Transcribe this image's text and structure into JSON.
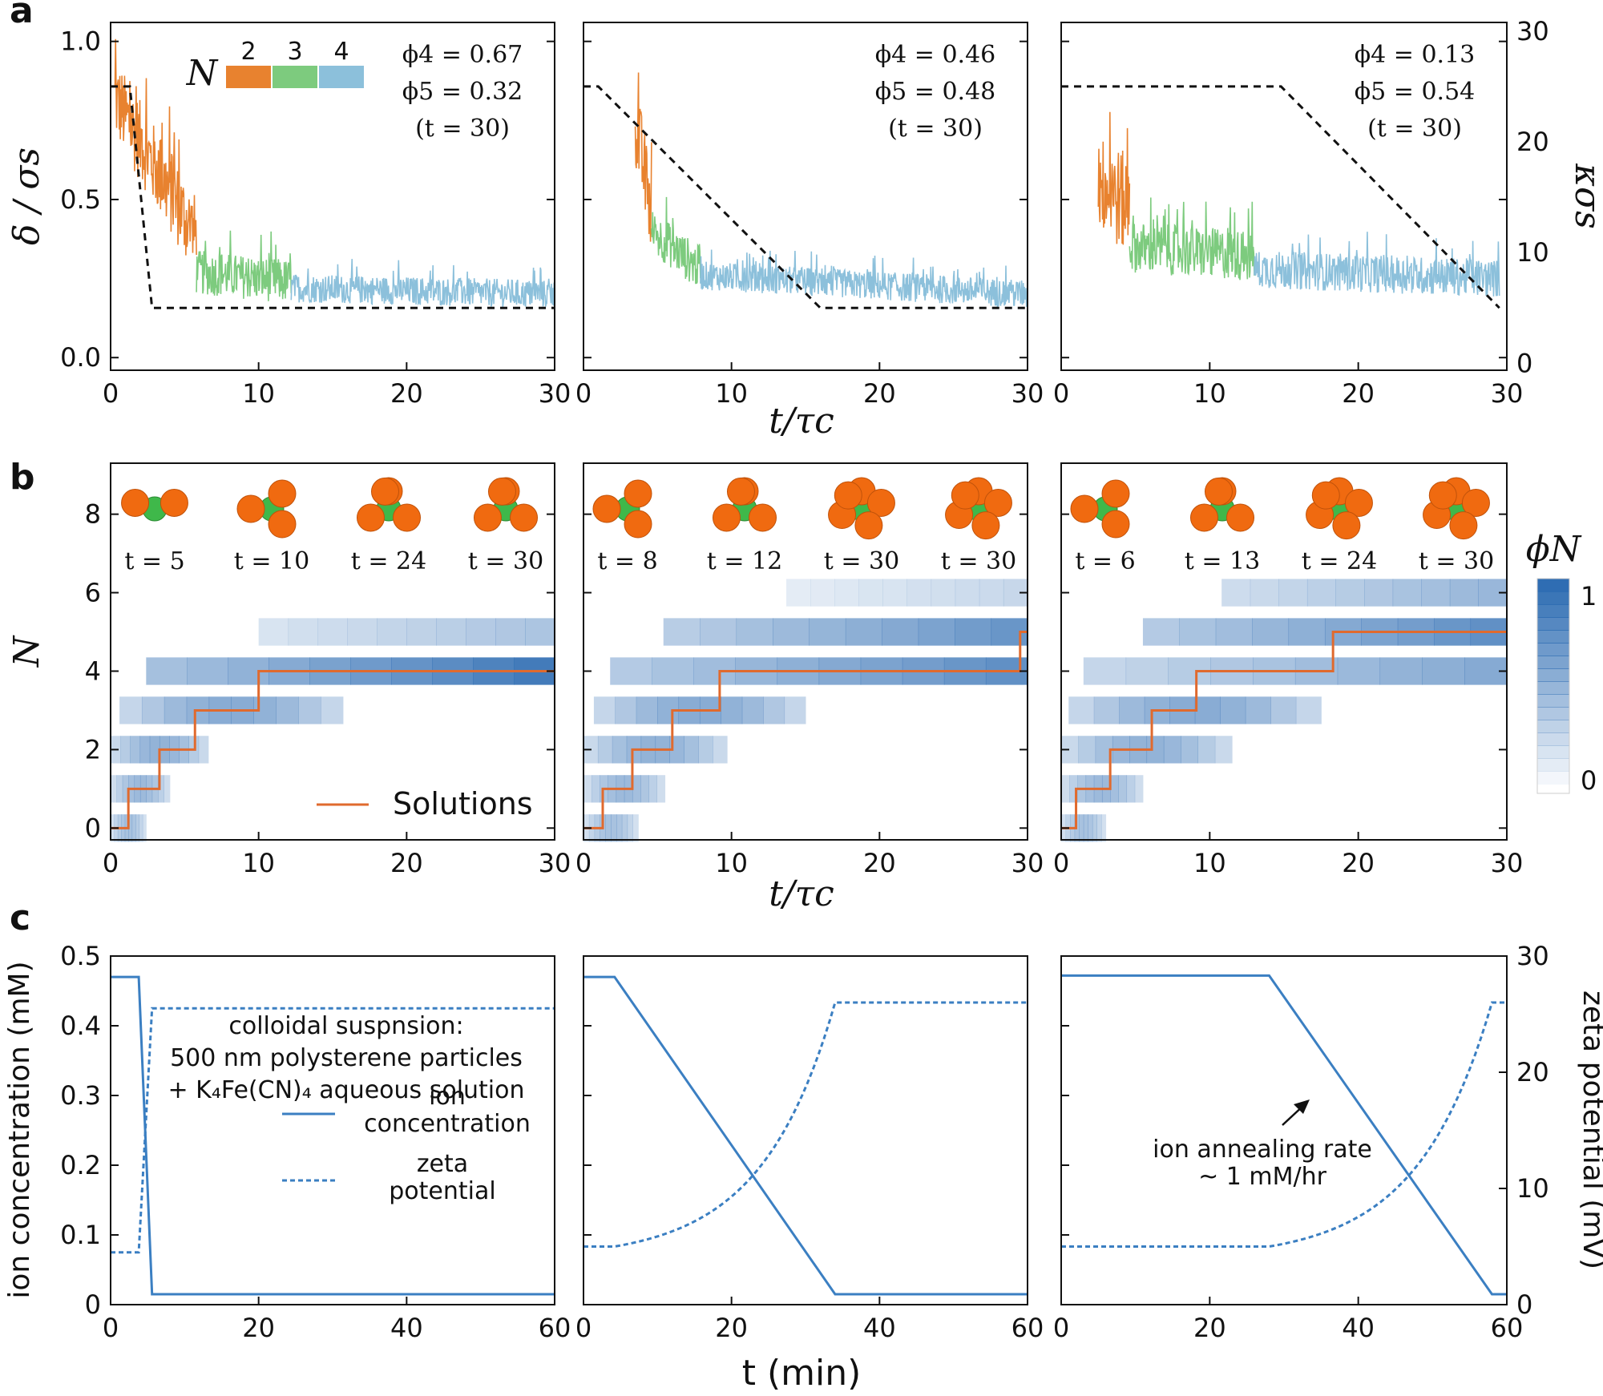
{
  "figure": {
    "panel_letters": [
      "a",
      "b",
      "c"
    ],
    "row_a": {
      "ylabel": "δ / σs",
      "y2label": "κσs",
      "xlabel": "t/τc",
      "yticks": [
        "0.0",
        "0.5",
        "1.0"
      ],
      "y2ticks": [
        "0",
        "10",
        "20",
        "30"
      ],
      "xticks": [
        "0",
        "10",
        "20",
        "30"
      ],
      "legend_symbol": "N",
      "legend": [
        {
          "label": "2",
          "color": "#e8822f"
        },
        {
          "label": "3",
          "color": "#7dcb7e"
        },
        {
          "label": "4",
          "color": "#8cc0db"
        }
      ]
    },
    "row_b": {
      "ylabel": "N",
      "xlabel": "t/τc",
      "yticks": [
        "0",
        "2",
        "4",
        "6",
        "8"
      ],
      "xticks": [
        "0",
        "10",
        "20",
        "30"
      ],
      "colorbar_label": "ϕN",
      "colorbar_ticks": [
        "0",
        "1"
      ],
      "legend_label": "Solutions",
      "solution_color": "#e06a2e",
      "heat_color": "#2f6db3"
    },
    "row_c": {
      "ylabel": "ion concentration (mM)",
      "y2label": "zeta potential (mV)",
      "xlabel": "t (min)",
      "yticks": [
        "0",
        "0.1",
        "0.2",
        "0.3",
        "0.4",
        "0.5"
      ],
      "y2ticks": [
        "0",
        "10",
        "20",
        "30"
      ],
      "xticks": [
        "0",
        "20",
        "40",
        "60"
      ],
      "info_lines": [
        "colloidal suspnsion:",
        "500 nm polysterene particles",
        "+ K₄Fe(CN)₄ aqueous solution"
      ],
      "legend": [
        {
          "label": [
            "ion",
            "concentration"
          ],
          "style": "solid"
        },
        {
          "label": [
            "zeta",
            "potential"
          ],
          "style": "dashed"
        }
      ],
      "annotation": [
        "ion annealing rate",
        "~ 1 mM/hr"
      ],
      "line_color": "#3b7fc2"
    }
  },
  "chart_data": [
    {
      "type": "line",
      "panel": "a1",
      "title": "",
      "xlabel": "t/τc",
      "ylabel": "δ / σs",
      "xlim": [
        0,
        30
      ],
      "ylim": [
        -0.04,
        1.06
      ],
      "y2lim": [
        0,
        30
      ],
      "phi_labels": [
        "ϕ4 = 0.67",
        "ϕ5 = 0.32",
        "(t = 30)"
      ],
      "segments": [
        {
          "N": 2,
          "t_start": 0.3,
          "t_end": 5.8,
          "mean_start": 0.82,
          "mean_end": 0.38,
          "noise": 0.13
        },
        {
          "N": 3,
          "t_start": 5.8,
          "t_end": 12.2,
          "mean_start": 0.27,
          "mean_end": 0.24,
          "noise": 0.07
        },
        {
          "N": 4,
          "t_start": 12.2,
          "t_end": 30,
          "mean_start": 0.22,
          "mean_end": 0.2,
          "noise": 0.045
        }
      ],
      "kappa_x": [
        0,
        1.3,
        2.8,
        30
      ],
      "kappa_y": [
        25,
        25,
        5,
        5
      ]
    },
    {
      "type": "line",
      "panel": "a2",
      "xlim": [
        0,
        30
      ],
      "ylim": [
        -0.04,
        1.06
      ],
      "y2lim": [
        0,
        30
      ],
      "phi_labels": [
        "ϕ4 = 0.46",
        "ϕ5 = 0.48",
        "(t = 30)"
      ],
      "segments": [
        {
          "N": 2,
          "t_start": 3.5,
          "t_end": 4.6,
          "mean_start": 0.75,
          "mean_end": 0.45,
          "noise": 0.14
        },
        {
          "N": 3,
          "t_start": 4.6,
          "t_end": 7.9,
          "mean_start": 0.4,
          "mean_end": 0.28,
          "noise": 0.07
        },
        {
          "N": 4,
          "t_start": 7.9,
          "t_end": 30,
          "mean_start": 0.26,
          "mean_end": 0.2,
          "noise": 0.045
        }
      ],
      "kappa_x": [
        0,
        1,
        16,
        30
      ],
      "kappa_y": [
        25,
        25,
        5,
        5
      ]
    },
    {
      "type": "line",
      "panel": "a3",
      "xlim": [
        0,
        30
      ],
      "ylim": [
        -0.04,
        1.06
      ],
      "y2lim": [
        0,
        30
      ],
      "phi_labels": [
        "ϕ4 = 0.13",
        "ϕ5 = 0.54",
        "(t = 30)"
      ],
      "segments": [
        {
          "N": 2,
          "t_start": 2.5,
          "t_end": 4.6,
          "mean_start": 0.55,
          "mean_end": 0.48,
          "noise": 0.16
        },
        {
          "N": 3,
          "t_start": 4.6,
          "t_end": 13,
          "mean_start": 0.35,
          "mean_end": 0.32,
          "noise": 0.08
        },
        {
          "N": 4,
          "t_start": 13,
          "t_end": 29.5,
          "mean_start": 0.28,
          "mean_end": 0.25,
          "noise": 0.06
        }
      ],
      "kappa_x": [
        0,
        14.8,
        29.5
      ],
      "kappa_y": [
        25,
        25,
        5
      ]
    },
    {
      "type": "heatmap",
      "panel": "b1",
      "xlim": [
        0,
        30
      ],
      "ylim": [
        -0.3,
        9.3
      ],
      "snapshots": [
        {
          "label": "t = 5",
          "n": 2
        },
        {
          "label": "t = 10",
          "n": 3
        },
        {
          "label": "t = 24",
          "n": 4
        },
        {
          "label": "t = 30",
          "n": 4
        }
      ],
      "rows": [
        {
          "N": 0,
          "t0": 0,
          "t1": 2.4,
          "i": 0.45
        },
        {
          "N": 1,
          "t0": 0,
          "t1": 4,
          "i": 0.5
        },
        {
          "N": 2,
          "t0": 0,
          "t1": 6.6,
          "i": 0.55
        },
        {
          "N": 3,
          "t0": 0.6,
          "t1": 15.7,
          "i": 0.6
        },
        {
          "N": 4,
          "t0": 2.4,
          "t1": 30,
          "i": 1.0
        },
        {
          "N": 5,
          "t0": 10,
          "t1": 30,
          "i": 0.45
        }
      ],
      "solution_x": [
        0,
        1.2,
        1.2,
        3.3,
        3.3,
        5.7,
        5.7,
        10,
        10,
        30
      ],
      "solution_y": [
        0,
        0,
        1,
        1,
        2,
        2,
        3,
        3,
        4,
        4
      ]
    },
    {
      "type": "heatmap",
      "panel": "b2",
      "xlim": [
        0,
        30
      ],
      "ylim": [
        -0.3,
        9.3
      ],
      "snapshots": [
        {
          "label": "t = 8",
          "n": 3
        },
        {
          "label": "t = 12",
          "n": 4
        },
        {
          "label": "t = 30",
          "n": 5
        },
        {
          "label": "t = 30",
          "n": 5
        }
      ],
      "rows": [
        {
          "N": 0,
          "t0": 0,
          "t1": 3.7,
          "i": 0.45
        },
        {
          "N": 1,
          "t0": 0,
          "t1": 5.5,
          "i": 0.5
        },
        {
          "N": 2,
          "t0": 0,
          "t1": 9.7,
          "i": 0.55
        },
        {
          "N": 3,
          "t0": 0.7,
          "t1": 15,
          "i": 0.6
        },
        {
          "N": 4,
          "t0": 1.8,
          "t1": 30,
          "i": 0.85
        },
        {
          "N": 5,
          "t0": 5.4,
          "t1": 30,
          "i": 0.8
        },
        {
          "N": 6,
          "t0": 13.7,
          "t1": 30,
          "i": 0.3
        }
      ],
      "solution_x": [
        0,
        1.3,
        1.3,
        3.3,
        3.3,
        6,
        6,
        9.2,
        9.2,
        29.5,
        29.5,
        30
      ],
      "solution_y": [
        0,
        0,
        1,
        1,
        2,
        2,
        3,
        3,
        4,
        4,
        5,
        5
      ]
    },
    {
      "type": "heatmap",
      "panel": "b3",
      "xlim": [
        0,
        30
      ],
      "ylim": [
        -0.3,
        9.3
      ],
      "snapshots": [
        {
          "label": "t = 6",
          "n": 3
        },
        {
          "label": "t = 13",
          "n": 4
        },
        {
          "label": "t = 24",
          "n": 5
        },
        {
          "label": "t = 30",
          "n": 5
        }
      ],
      "rows": [
        {
          "N": 0,
          "t0": 0,
          "t1": 3,
          "i": 0.45
        },
        {
          "N": 1,
          "t0": 0,
          "t1": 5.5,
          "i": 0.5
        },
        {
          "N": 2,
          "t0": 0,
          "t1": 11.5,
          "i": 0.55
        },
        {
          "N": 3,
          "t0": 0.5,
          "t1": 17.5,
          "i": 0.6
        },
        {
          "N": 4,
          "t0": 1.5,
          "t1": 30,
          "i": 0.65
        },
        {
          "N": 5,
          "t0": 5.5,
          "t1": 30,
          "i": 0.85
        },
        {
          "N": 6,
          "t0": 10.8,
          "t1": 30,
          "i": 0.55
        }
      ],
      "solution_x": [
        0,
        1,
        1,
        3.3,
        3.3,
        6.1,
        6.1,
        9.1,
        9.1,
        18.3,
        18.3,
        30
      ],
      "solution_y": [
        0,
        0,
        1,
        1,
        2,
        2,
        3,
        3,
        4,
        4,
        5,
        5
      ]
    },
    {
      "type": "line",
      "panel": "c1",
      "xlim": [
        0,
        60
      ],
      "ylim": [
        0,
        0.5
      ],
      "y2lim": [
        0,
        30
      ],
      "ion": {
        "x": [
          0,
          3.8,
          5.6,
          60
        ],
        "y": [
          0.47,
          0.47,
          0.015,
          0.015
        ]
      },
      "zeta": {
        "x": [
          0,
          3.8,
          5.6,
          60
        ],
        "y": [
          4.5,
          4.5,
          25.5,
          25.5
        ]
      }
    },
    {
      "type": "line",
      "panel": "c2",
      "xlim": [
        0,
        60
      ],
      "ylim": [
        0,
        0.5
      ],
      "y2lim": [
        0,
        30
      ],
      "ion": {
        "x": [
          0,
          4.2,
          34,
          60
        ],
        "y": [
          0.47,
          0.47,
          0.015,
          0.015
        ]
      },
      "zeta": {
        "x": [
          0,
          4.2,
          34,
          60
        ],
        "y": [
          5,
          5,
          26,
          26
        ],
        "shape": "exponential"
      }
    },
    {
      "type": "line",
      "panel": "c3",
      "xlim": [
        0,
        60
      ],
      "ylim": [
        0,
        0.5
      ],
      "y2lim": [
        0,
        30
      ],
      "ion": {
        "x": [
          0,
          28,
          58,
          60
        ],
        "y": [
          0.472,
          0.472,
          0.015,
          0.015
        ]
      },
      "zeta": {
        "x": [
          0,
          28,
          58,
          60
        ],
        "y": [
          5,
          5,
          26,
          26
        ],
        "shape": "exponential"
      }
    }
  ]
}
